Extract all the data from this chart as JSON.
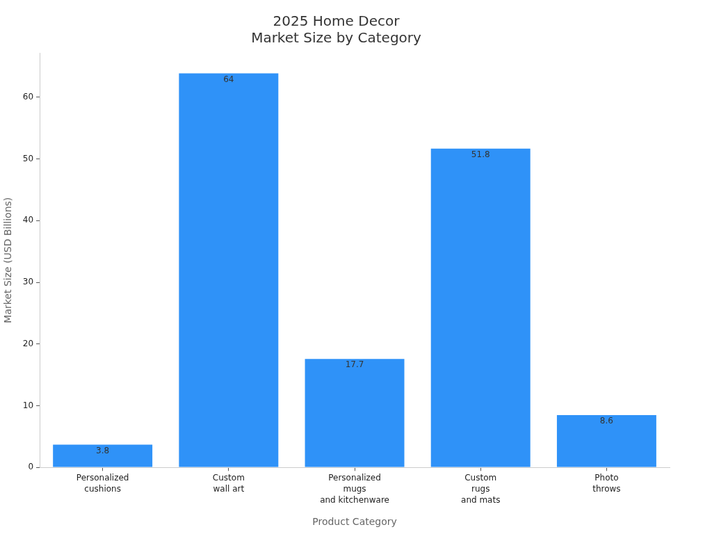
{
  "chart_data": {
    "type": "bar",
    "title": "2025 Home Decor\nMarket Size by Category",
    "xlabel": "Product Category",
    "ylabel": "Market Size (USD Billions)",
    "categories": [
      "Personalized\ncushions",
      "Custom\nwall art",
      "Personalized\nmugs\nand kitchenware",
      "Custom\nrugs\nand mats",
      "Photo\nthrows"
    ],
    "values": [
      3.8,
      64,
      17.7,
      51.8,
      8.6
    ],
    "color": "#2f92f8",
    "ylim": [
      0,
      67.2
    ],
    "yticks": [
      0,
      10,
      20,
      30,
      40,
      50,
      60
    ],
    "grid": false,
    "legend": false,
    "data_labels": true
  }
}
